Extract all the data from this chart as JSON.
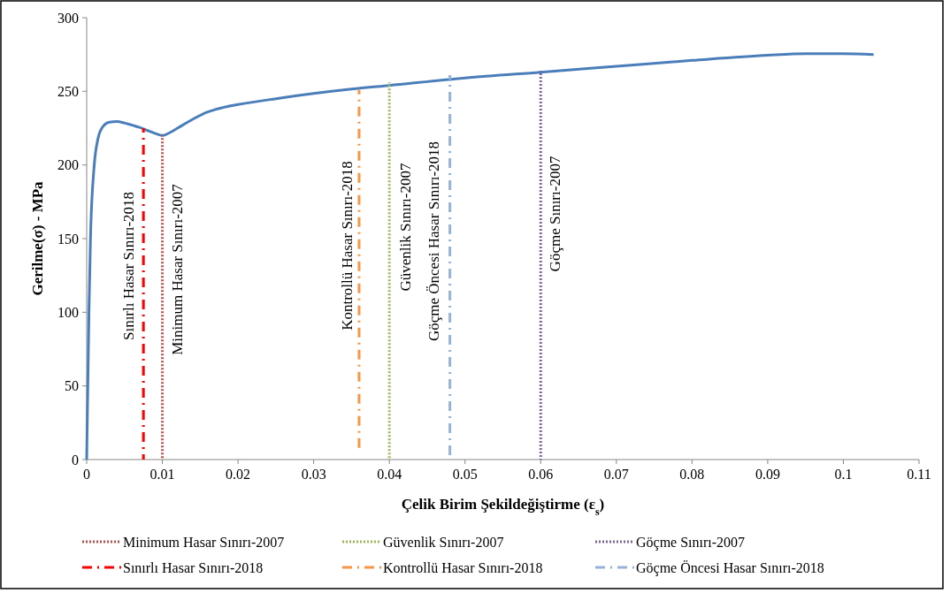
{
  "chart_data": {
    "type": "line",
    "xlabel": "Çelik Birim Şekildeğiştirme (ε$_{s}$)",
    "ylabel": "Gerilme(σ) - MPa",
    "xlim": [
      0,
      0.11
    ],
    "xticks": [
      0,
      0.01,
      0.02,
      0.03,
      0.04,
      0.05,
      0.06,
      0.07,
      0.08,
      0.09,
      0.1,
      0.11
    ],
    "ylim": [
      0,
      300
    ],
    "yticks": [
      0,
      50,
      100,
      150,
      200,
      250,
      300
    ],
    "grid": false,
    "legend": "bottom",
    "marker": "none",
    "series": [
      {
        "color": "#4a7ebb",
        "line_style": "solid",
        "x": [
          0,
          0.0003,
          0.0005,
          0.001,
          0.0015,
          0.002,
          0.003,
          0.004,
          0.005,
          0.006,
          0.007,
          0.008,
          0.009,
          0.01,
          0.011,
          0.012,
          0.014,
          0.016,
          0.018,
          0.02,
          0.025,
          0.03,
          0.035,
          0.04,
          0.05,
          0.06,
          0.07,
          0.08,
          0.09,
          0.095,
          0.1,
          0.104
        ],
        "values": [
          0,
          100,
          150,
          200,
          218,
          225,
          229,
          229.5,
          228.5,
          227,
          225.5,
          223.5,
          221.5,
          220,
          222,
          225,
          231,
          236,
          239,
          241,
          245,
          248.5,
          251.5,
          254,
          259,
          263,
          267,
          271,
          274.5,
          275.5,
          275.5,
          275
        ]
      },
      {
        "name": "Minimum Hasar Sınırı-2007",
        "color": "#c0504d",
        "line_style": "dotted",
        "x": [
          0.01,
          0.01
        ],
        "values": [
          0,
          220
        ]
      },
      {
        "name": "Güvenlik Sınırı-2007",
        "color": "#9bbb59",
        "line_style": "dotted",
        "x": [
          0.04,
          0.04
        ],
        "values": [
          0,
          256
        ]
      },
      {
        "name": "Göçme Sınırı-2007",
        "color": "#8064a2",
        "line_style": "dotted",
        "x": [
          0.06,
          0.06
        ],
        "values": [
          0,
          264
        ]
      },
      {
        "name": "Sınırlı Hasar Sınırı-2018",
        "color": "#ff0000",
        "line_style": "dashed",
        "x": [
          0.0075,
          0.0075
        ],
        "values": [
          0,
          225
        ]
      },
      {
        "name": "Kontrollü Hasar Sınırı-2018",
        "color": "#f79646",
        "line_style": "dashed",
        "x": [
          0.036,
          0.036
        ],
        "values": [
          6,
          251
        ]
      },
      {
        "name": "Göçme Öncesi Hasar Sınırı-2018",
        "color": "#95b3d7",
        "line_style": "dashed",
        "x": [
          0.048,
          0.048
        ],
        "values": [
          0,
          261
        ]
      }
    ]
  }
}
